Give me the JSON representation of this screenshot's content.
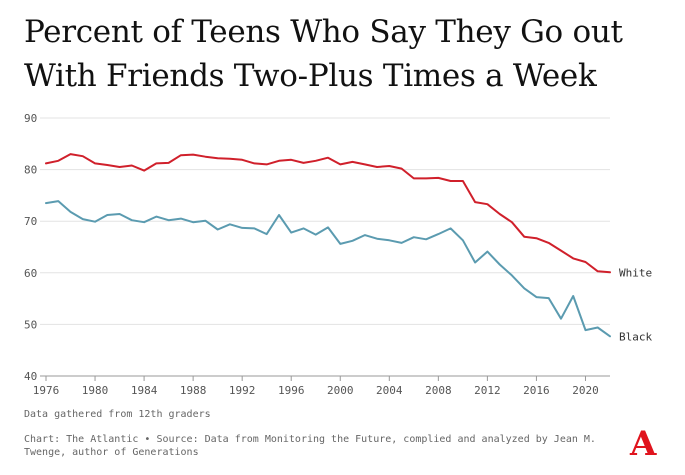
{
  "chart_data": {
    "type": "line",
    "title": "Percent of Teens Who Say They Go out With Friends Two-Plus Times a Week",
    "xlabel": "",
    "ylabel": "",
    "xlim": [
      1976,
      2022
    ],
    "ylim": [
      40,
      90
    ],
    "x_ticks": [
      "1976",
      "1980",
      "1984",
      "1988",
      "1992",
      "1996",
      "2000",
      "2004",
      "2008",
      "2012",
      "2016",
      "2020"
    ],
    "y_ticks": [
      "40",
      "50",
      "60",
      "70",
      "80",
      "90"
    ],
    "x": [
      1976,
      1977,
      1978,
      1979,
      1980,
      1981,
      1982,
      1983,
      1984,
      1985,
      1986,
      1987,
      1988,
      1989,
      1990,
      1991,
      1992,
      1993,
      1994,
      1995,
      1996,
      1997,
      1998,
      1999,
      2000,
      2001,
      2002,
      2003,
      2004,
      2005,
      2006,
      2007,
      2008,
      2009,
      2010,
      2011,
      2012,
      2013,
      2014,
      2015,
      2016,
      2017,
      2018,
      2019,
      2020,
      2021,
      2022
    ],
    "series": [
      {
        "name": "White",
        "color": "#d0202b",
        "values": [
          81.2,
          81.7,
          83.0,
          82.6,
          81.2,
          80.9,
          80.5,
          80.8,
          79.8,
          81.2,
          81.3,
          82.8,
          82.9,
          82.5,
          82.2,
          82.1,
          81.9,
          81.2,
          81.0,
          81.7,
          81.9,
          81.3,
          81.7,
          82.3,
          81.0,
          81.5,
          81.0,
          80.5,
          80.7,
          80.2,
          78.3,
          78.3,
          78.4,
          77.8,
          77.8,
          73.7,
          73.3,
          71.4,
          69.8,
          67.0,
          66.7,
          65.8,
          64.3,
          62.8,
          62.1,
          60.3,
          60.1
        ]
      },
      {
        "name": "Black",
        "color": "#5b9bb0",
        "values": [
          73.5,
          73.9,
          71.8,
          70.4,
          69.9,
          71.2,
          71.4,
          70.2,
          69.8,
          70.9,
          70.2,
          70.5,
          69.8,
          70.1,
          68.4,
          69.4,
          68.7,
          68.6,
          67.5,
          71.2,
          67.8,
          68.6,
          67.4,
          68.8,
          65.6,
          66.2,
          67.3,
          66.6,
          66.3,
          65.8,
          66.9,
          66.5,
          67.5,
          68.6,
          66.3,
          62.0,
          64.1,
          61.6,
          59.5,
          57.0,
          55.3,
          55.1,
          51.1,
          55.5,
          48.9,
          49.4,
          47.7
        ]
      }
    ]
  },
  "note": "Data gathered from 12th graders",
  "source": "Chart: The Atlantic • Source: Data from Monitoring the Future, complied and analyzed by Jean M. Twenge, author of Generations",
  "logo": "A"
}
